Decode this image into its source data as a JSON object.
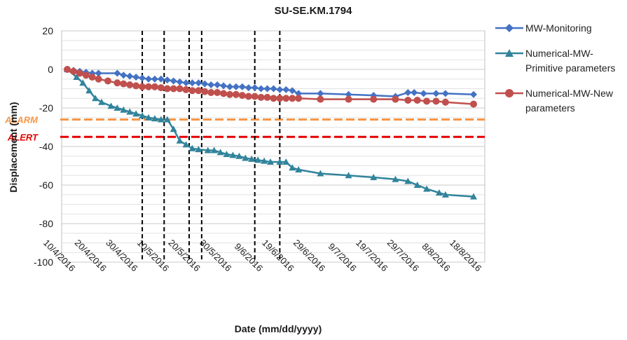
{
  "chart_data": {
    "type": "line",
    "title": "SU-SE.KM.1794",
    "xlabel": "Date (mm/dd/yyyy)",
    "ylabel": "Displacement (mm)",
    "ylim": [
      -100,
      20
    ],
    "y_ticks": [
      20,
      0,
      -20,
      -40,
      -60,
      -80,
      -100
    ],
    "xlim": [
      "2016-04-10",
      "2016-08-18"
    ],
    "x_tick_dates": [
      "2016-04-10",
      "2016-04-20",
      "2016-04-30",
      "2016-05-10",
      "2016-05-20",
      "2016-05-30",
      "2016-06-09",
      "2016-06-19",
      "2016-06-29",
      "2016-07-09",
      "2016-07-19",
      "2016-07-29",
      "2016-08-08",
      "2016-08-18"
    ],
    "x_tick_labels": [
      "10/4/2016",
      "20/4/2016",
      "30/4/2016",
      "10/5/2016",
      "20/5/2016",
      "30/5/2016",
      "9/6/2016",
      "19/6/2016",
      "29/6/2016",
      "9/7/2016",
      "19/7/2016",
      "29/7/2016",
      "8/8/2016",
      "18/8/2016"
    ],
    "grid": true,
    "legend_position": "right",
    "series": [
      {
        "name": "MW-Monitoring",
        "color": "#4472c4",
        "marker": "diamond",
        "x": [
          "2016-04-10",
          "2016-04-12",
          "2016-04-14",
          "2016-04-16",
          "2016-04-18",
          "2016-04-20",
          "2016-04-26",
          "2016-04-28",
          "2016-04-30",
          "2016-05-02",
          "2016-05-04",
          "2016-05-06",
          "2016-05-08",
          "2016-05-10",
          "2016-05-12",
          "2016-05-14",
          "2016-05-16",
          "2016-05-18",
          "2016-05-20",
          "2016-05-22",
          "2016-05-24",
          "2016-05-26",
          "2016-05-28",
          "2016-05-30",
          "2016-06-01",
          "2016-06-03",
          "2016-06-05",
          "2016-06-07",
          "2016-06-09",
          "2016-06-11",
          "2016-06-13",
          "2016-06-15",
          "2016-06-17",
          "2016-06-19",
          "2016-06-21",
          "2016-06-23",
          "2016-06-30",
          "2016-07-09",
          "2016-07-17",
          "2016-07-24",
          "2016-07-28",
          "2016-07-30",
          "2016-08-02",
          "2016-08-06",
          "2016-08-09",
          "2016-08-18"
        ],
        "values": [
          0,
          -0.5,
          -1,
          -1.5,
          -2,
          -2,
          -2,
          -3,
          -3.5,
          -4,
          -4.5,
          -5,
          -5,
          -5,
          -5.5,
          -6,
          -6.5,
          -7,
          -7,
          -7,
          -7.5,
          -8,
          -8,
          -8.5,
          -9,
          -9,
          -9,
          -9.5,
          -9.5,
          -10,
          -10,
          -10,
          -10.5,
          -10.5,
          -11,
          -12.5,
          -12.5,
          -13,
          -13.5,
          -14,
          -12,
          -12,
          -12.5,
          -12.5,
          -12.5,
          -13
        ]
      },
      {
        "name": "Numerical-MW-Primitive parameters",
        "color": "#31849b",
        "marker": "triangle",
        "x": [
          "2016-04-10",
          "2016-04-13",
          "2016-04-15",
          "2016-04-17",
          "2016-04-19",
          "2016-04-21",
          "2016-04-24",
          "2016-04-26",
          "2016-04-28",
          "2016-04-30",
          "2016-05-02",
          "2016-05-04",
          "2016-05-06",
          "2016-05-08",
          "2016-05-10",
          "2016-05-12",
          "2016-05-14",
          "2016-05-16",
          "2016-05-18",
          "2016-05-20",
          "2016-05-22",
          "2016-05-25",
          "2016-05-27",
          "2016-05-29",
          "2016-05-31",
          "2016-06-02",
          "2016-06-04",
          "2016-06-06",
          "2016-06-08",
          "2016-06-10",
          "2016-06-12",
          "2016-06-14",
          "2016-06-17",
          "2016-06-19",
          "2016-06-21",
          "2016-06-23",
          "2016-06-30",
          "2016-07-09",
          "2016-07-17",
          "2016-07-24",
          "2016-07-28",
          "2016-07-31",
          "2016-08-03",
          "2016-08-07",
          "2016-08-09",
          "2016-08-18"
        ],
        "values": [
          0,
          -4,
          -7,
          -11,
          -15,
          -17,
          -19,
          -20,
          -21,
          -22,
          -23,
          -24,
          -25,
          -25.5,
          -26,
          -26,
          -31,
          -37,
          -39,
          -41,
          -41.5,
          -42,
          -42,
          -43,
          -44,
          -44.5,
          -45,
          -46,
          -46.5,
          -47,
          -47.5,
          -48,
          -48,
          -48,
          -51,
          -52,
          -54,
          -55,
          -56,
          -57,
          -58,
          -60,
          -62,
          -64,
          -65,
          -66
        ]
      },
      {
        "name": "Numerical-MW-New parameters",
        "color": "#c0504d",
        "marker": "circle",
        "x": [
          "2016-04-10",
          "2016-04-12",
          "2016-04-14",
          "2016-04-16",
          "2016-04-18",
          "2016-04-20",
          "2016-04-23",
          "2016-04-26",
          "2016-04-28",
          "2016-04-30",
          "2016-05-02",
          "2016-05-04",
          "2016-05-06",
          "2016-05-08",
          "2016-05-10",
          "2016-05-12",
          "2016-05-14",
          "2016-05-16",
          "2016-05-18",
          "2016-05-20",
          "2016-05-22",
          "2016-05-24",
          "2016-05-26",
          "2016-05-28",
          "2016-05-30",
          "2016-06-01",
          "2016-06-03",
          "2016-06-05",
          "2016-06-07",
          "2016-06-09",
          "2016-06-11",
          "2016-06-13",
          "2016-06-15",
          "2016-06-17",
          "2016-06-19",
          "2016-06-21",
          "2016-06-23",
          "2016-06-30",
          "2016-07-09",
          "2016-07-17",
          "2016-07-24",
          "2016-07-28",
          "2016-07-31",
          "2016-08-03",
          "2016-08-06",
          "2016-08-09",
          "2016-08-18"
        ],
        "values": [
          0,
          -1,
          -2,
          -3,
          -4,
          -5,
          -6,
          -7,
          -7.5,
          -8,
          -8.5,
          -9,
          -9,
          -9,
          -9.5,
          -10,
          -10,
          -10,
          -10.5,
          -11,
          -11,
          -11.5,
          -12,
          -12,
          -12.5,
          -13,
          -13,
          -13.5,
          -14,
          -14,
          -14.5,
          -14.5,
          -15,
          -15,
          -15,
          -15,
          -15,
          -15.5,
          -15.5,
          -15.5,
          -15.5,
          -16,
          -16,
          -16.5,
          -16.5,
          -17,
          -18
        ]
      }
    ],
    "threshold_lines": [
      {
        "label": "ALARM",
        "value": -26,
        "color": "#f79646"
      },
      {
        "label": "ALERT",
        "value": -35,
        "color": "#e60000"
      }
    ],
    "vertical_markers": [
      "2016-05-04",
      "2016-05-11",
      "2016-05-19",
      "2016-05-23",
      "2016-06-09",
      "2016-06-17"
    ]
  }
}
